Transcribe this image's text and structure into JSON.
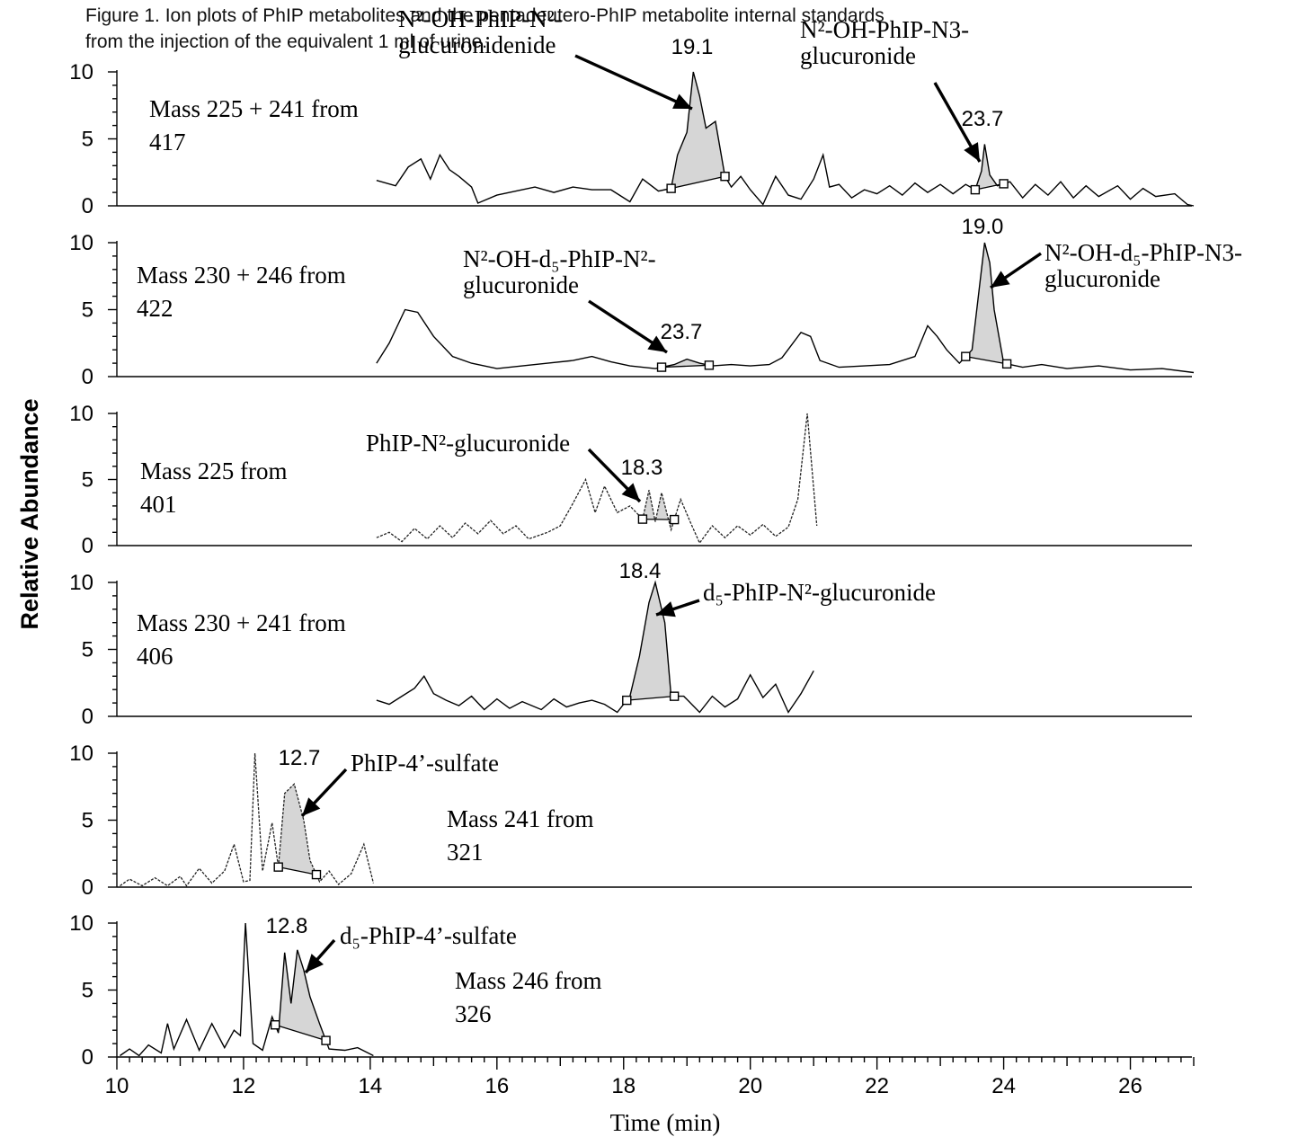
{
  "chart_data": {
    "type": "line",
    "title": "Figure 1.  Ion plots of PhIP metabolites and the pentadeutero-PhIP metabolite internal standards from the injection of the equivalent 1 ml of urine.",
    "title_lines": [
      "Figure 1.  Ion plots of PhIP metabolites and the pentadeutero-PhIP metabolite internal standards",
      "from the injection of the equivalent 1 ml of urine."
    ],
    "xlabel": "Time (min)",
    "ylabel": "Relative Abundance",
    "xlim": [
      10,
      27
    ],
    "x_ticks": [
      "10",
      "12",
      "14",
      "16",
      "18",
      "20",
      "22",
      "24",
      "26"
    ],
    "y_ticks": [
      "0",
      "5",
      "10"
    ],
    "panels": [
      {
        "mass_label": [
          "Mass 225 + 241 from",
          "417"
        ],
        "ylim": [
          0,
          10
        ],
        "style": "solid",
        "trace": [
          [
            14.1,
            1.9
          ],
          [
            14.4,
            1.5
          ],
          [
            14.6,
            2.9
          ],
          [
            14.8,
            3.5
          ],
          [
            14.95,
            2.0
          ],
          [
            15.1,
            3.8
          ],
          [
            15.25,
            2.7
          ],
          [
            15.4,
            2.2
          ],
          [
            15.6,
            1.4
          ],
          [
            15.7,
            0.2
          ],
          [
            16.0,
            0.8
          ],
          [
            16.3,
            1.1
          ],
          [
            16.6,
            1.4
          ],
          [
            16.9,
            1.0
          ],
          [
            17.2,
            1.4
          ],
          [
            17.5,
            1.2
          ],
          [
            17.8,
            1.2
          ],
          [
            18.1,
            0.3
          ],
          [
            18.3,
            2.0
          ],
          [
            18.55,
            1.1
          ],
          [
            18.75,
            1.3
          ],
          [
            18.85,
            3.8
          ],
          [
            19.0,
            5.5
          ],
          [
            19.1,
            10.0
          ],
          [
            19.2,
            8.2
          ],
          [
            19.3,
            5.8
          ],
          [
            19.45,
            6.3
          ],
          [
            19.6,
            2.2
          ],
          [
            19.7,
            1.4
          ],
          [
            19.85,
            2.2
          ],
          [
            20.0,
            1.2
          ],
          [
            20.2,
            0.1
          ],
          [
            20.4,
            2.2
          ],
          [
            20.6,
            0.8
          ],
          [
            20.8,
            0.5
          ],
          [
            21.0,
            2.0
          ],
          [
            21.15,
            3.8
          ],
          [
            21.25,
            1.4
          ],
          [
            21.4,
            1.6
          ],
          [
            21.6,
            0.6
          ],
          [
            21.8,
            1.2
          ],
          [
            22.0,
            0.9
          ],
          [
            22.2,
            1.5
          ],
          [
            22.4,
            0.8
          ],
          [
            22.6,
            1.7
          ],
          [
            22.8,
            1.0
          ],
          [
            23.0,
            1.6
          ],
          [
            23.2,
            0.9
          ],
          [
            23.4,
            1.6
          ],
          [
            23.55,
            1.2
          ],
          [
            23.65,
            2.6
          ],
          [
            23.7,
            4.6
          ],
          [
            23.78,
            2.3
          ],
          [
            23.9,
            1.5
          ],
          [
            24.1,
            1.8
          ],
          [
            24.3,
            0.6
          ],
          [
            24.5,
            1.6
          ],
          [
            24.7,
            0.8
          ],
          [
            24.9,
            1.8
          ],
          [
            25.1,
            0.6
          ],
          [
            25.3,
            1.5
          ],
          [
            25.5,
            0.7
          ],
          [
            25.8,
            1.5
          ],
          [
            26.0,
            0.5
          ],
          [
            26.2,
            1.3
          ],
          [
            26.4,
            0.7
          ],
          [
            26.7,
            0.9
          ],
          [
            26.9,
            0.1
          ],
          [
            27.0,
            0.0
          ]
        ],
        "peaks": [
          {
            "label": "19.1",
            "rt": 19.1,
            "height": 10.0,
            "start": 18.75,
            "end": 19.6
          },
          {
            "label": "23.7",
            "rt": 23.7,
            "height": 4.6,
            "start": 23.55,
            "end": 24.0
          }
        ],
        "annotations": [
          {
            "text": [
              "N²-OH-PhIP-N²-",
              "glucuronidenide"
            ],
            "points_to": 19.1
          },
          {
            "text": [
              "N²-OH-PhIP-N3-",
              "glucuronide"
            ],
            "points_to": 23.7
          }
        ]
      },
      {
        "mass_label": [
          "Mass 230 + 246 from",
          "422"
        ],
        "ylim": [
          0,
          10
        ],
        "style": "solid",
        "trace": [
          [
            14.1,
            1.0
          ],
          [
            14.3,
            2.5
          ],
          [
            14.55,
            5.0
          ],
          [
            14.75,
            4.8
          ],
          [
            15.0,
            3.0
          ],
          [
            15.3,
            1.5
          ],
          [
            15.6,
            1.0
          ],
          [
            16.0,
            0.6
          ],
          [
            16.4,
            0.8
          ],
          [
            16.8,
            1.0
          ],
          [
            17.2,
            1.2
          ],
          [
            17.5,
            1.5
          ],
          [
            17.8,
            1.1
          ],
          [
            18.1,
            0.8
          ],
          [
            18.5,
            0.6
          ],
          [
            18.8,
            0.9
          ],
          [
            19.0,
            1.3
          ],
          [
            19.2,
            1.0
          ],
          [
            19.4,
            0.8
          ],
          [
            19.7,
            0.9
          ],
          [
            20.0,
            0.8
          ],
          [
            20.3,
            0.9
          ],
          [
            20.5,
            1.4
          ],
          [
            20.8,
            3.3
          ],
          [
            20.95,
            3.0
          ],
          [
            21.1,
            1.2
          ],
          [
            21.4,
            0.7
          ],
          [
            21.8,
            0.8
          ],
          [
            22.2,
            0.9
          ],
          [
            22.6,
            1.5
          ],
          [
            22.8,
            3.8
          ],
          [
            22.95,
            3.0
          ],
          [
            23.1,
            2.0
          ],
          [
            23.3,
            1.0
          ],
          [
            23.5,
            2.0
          ],
          [
            23.6,
            6.0
          ],
          [
            23.7,
            10.0
          ],
          [
            23.78,
            8.5
          ],
          [
            23.85,
            5.0
          ],
          [
            24.0,
            1.0
          ],
          [
            24.3,
            0.7
          ],
          [
            24.6,
            0.9
          ],
          [
            25.0,
            0.6
          ],
          [
            25.5,
            0.8
          ],
          [
            26.0,
            0.5
          ],
          [
            26.5,
            0.6
          ],
          [
            27.0,
            0.3
          ]
        ],
        "peaks": [
          {
            "label": "19.0",
            "rt": 19.0,
            "height": 1.3,
            "start": 18.6,
            "end": 19.35
          },
          {
            "label": "23.7",
            "rt": 23.7,
            "height": 10.0,
            "start": 23.4,
            "end": 24.05
          }
        ],
        "annotations": [
          {
            "text": [
              "N²-OH-d₅-PhIP-N²-",
              "glucuronide"
            ],
            "points_to": 19.0
          },
          {
            "text": [
              "N²-OH-d₅-PhIP-N3-",
              "glucuronide"
            ],
            "points_to": 23.7
          }
        ]
      },
      {
        "mass_label": [
          "Mass 225 from",
          "401"
        ],
        "ylim": [
          0,
          10
        ],
        "style": "dotted",
        "trace": [
          [
            14.1,
            0.6
          ],
          [
            14.3,
            1.0
          ],
          [
            14.5,
            0.3
          ],
          [
            14.7,
            1.3
          ],
          [
            14.9,
            0.5
          ],
          [
            15.1,
            1.5
          ],
          [
            15.3,
            0.6
          ],
          [
            15.5,
            1.7
          ],
          [
            15.7,
            0.9
          ],
          [
            15.9,
            1.9
          ],
          [
            16.1,
            0.9
          ],
          [
            16.3,
            1.5
          ],
          [
            16.5,
            0.5
          ],
          [
            16.8,
            1.0
          ],
          [
            17.0,
            1.5
          ],
          [
            17.2,
            3.2
          ],
          [
            17.4,
            5.0
          ],
          [
            17.55,
            2.5
          ],
          [
            17.7,
            4.5
          ],
          [
            17.9,
            2.5
          ],
          [
            18.1,
            3.0
          ],
          [
            18.3,
            2.0
          ],
          [
            18.4,
            4.2
          ],
          [
            18.5,
            1.8
          ],
          [
            18.6,
            4.0
          ],
          [
            18.75,
            1.2
          ],
          [
            18.9,
            3.5
          ],
          [
            19.05,
            1.8
          ],
          [
            19.2,
            0.2
          ],
          [
            19.4,
            1.5
          ],
          [
            19.6,
            0.6
          ],
          [
            19.8,
            1.5
          ],
          [
            20.0,
            0.8
          ],
          [
            20.2,
            1.6
          ],
          [
            20.4,
            0.7
          ],
          [
            20.6,
            1.4
          ],
          [
            20.75,
            3.5
          ],
          [
            20.9,
            10.0
          ],
          [
            21.05,
            1.5
          ]
        ],
        "peaks": [
          {
            "label": "18.3",
            "rt": 18.3,
            "height": 4.2,
            "start": 18.3,
            "end": 18.8
          }
        ],
        "annotations": [
          {
            "text": [
              "PhIP-N²-glucuronide"
            ],
            "points_to": 18.3
          }
        ]
      },
      {
        "mass_label": [
          "Mass 230 + 241 from",
          "406"
        ],
        "ylim": [
          0,
          10
        ],
        "style": "solid",
        "trace": [
          [
            14.1,
            1.2
          ],
          [
            14.3,
            0.9
          ],
          [
            14.5,
            1.5
          ],
          [
            14.7,
            2.1
          ],
          [
            14.85,
            3.0
          ],
          [
            15.0,
            1.7
          ],
          [
            15.2,
            1.2
          ],
          [
            15.4,
            0.8
          ],
          [
            15.6,
            1.5
          ],
          [
            15.8,
            0.5
          ],
          [
            16.0,
            1.3
          ],
          [
            16.2,
            0.6
          ],
          [
            16.4,
            1.1
          ],
          [
            16.7,
            0.5
          ],
          [
            16.9,
            1.3
          ],
          [
            17.1,
            0.7
          ],
          [
            17.3,
            1.0
          ],
          [
            17.5,
            1.2
          ],
          [
            17.7,
            0.9
          ],
          [
            17.9,
            0.3
          ],
          [
            18.1,
            1.5
          ],
          [
            18.25,
            4.5
          ],
          [
            18.4,
            8.5
          ],
          [
            18.5,
            10.0
          ],
          [
            18.65,
            7.0
          ],
          [
            18.75,
            1.5
          ],
          [
            18.95,
            1.5
          ],
          [
            19.2,
            0.3
          ],
          [
            19.4,
            1.5
          ],
          [
            19.6,
            0.7
          ],
          [
            19.8,
            1.3
          ],
          [
            20.0,
            3.1
          ],
          [
            20.2,
            1.4
          ],
          [
            20.4,
            2.4
          ],
          [
            20.6,
            0.3
          ],
          [
            20.8,
            1.7
          ],
          [
            21.0,
            3.4
          ]
        ],
        "peaks": [
          {
            "label": "18.4",
            "rt": 18.4,
            "height": 10.0,
            "start": 18.05,
            "end": 18.8
          }
        ],
        "annotations": [
          {
            "text": [
              "d₅-PhIP-N²-glucuronide"
            ],
            "points_to": 18.4
          }
        ]
      },
      {
        "mass_label": [
          "Mass 241 from",
          "321"
        ],
        "ylim": [
          0,
          10
        ],
        "style": "dotted",
        "trace": [
          [
            10.05,
            0.1
          ],
          [
            10.2,
            0.6
          ],
          [
            10.4,
            0.1
          ],
          [
            10.6,
            0.7
          ],
          [
            10.8,
            0.1
          ],
          [
            11.0,
            0.8
          ],
          [
            11.1,
            0.1
          ],
          [
            11.3,
            1.4
          ],
          [
            11.5,
            0.3
          ],
          [
            11.7,
            1.2
          ],
          [
            11.85,
            3.2
          ],
          [
            12.0,
            0.4
          ],
          [
            12.1,
            0.5
          ],
          [
            12.18,
            10.0
          ],
          [
            12.3,
            1.2
          ],
          [
            12.45,
            4.8
          ],
          [
            12.55,
            1.5
          ],
          [
            12.65,
            7.0
          ],
          [
            12.8,
            7.7
          ],
          [
            12.95,
            5.0
          ],
          [
            13.05,
            2.0
          ],
          [
            13.2,
            0.4
          ],
          [
            13.35,
            1.2
          ],
          [
            13.5,
            0.2
          ],
          [
            13.7,
            1.0
          ],
          [
            13.9,
            3.2
          ],
          [
            14.05,
            0.3
          ]
        ],
        "peaks": [
          {
            "label": "12.7",
            "rt": 12.7,
            "height": 7.7,
            "start": 12.55,
            "end": 13.15
          }
        ],
        "annotations": [
          {
            "text": [
              "PhIP-4’-sulfate"
            ],
            "points_to": 12.8
          }
        ]
      },
      {
        "mass_label": [
          "Mass 246 from",
          "326"
        ],
        "ylim": [
          0,
          10
        ],
        "style": "solid",
        "trace": [
          [
            10.05,
            0.1
          ],
          [
            10.2,
            0.6
          ],
          [
            10.35,
            0.1
          ],
          [
            10.5,
            0.9
          ],
          [
            10.7,
            0.3
          ],
          [
            10.8,
            2.5
          ],
          [
            10.9,
            0.6
          ],
          [
            11.1,
            2.8
          ],
          [
            11.3,
            0.5
          ],
          [
            11.5,
            2.5
          ],
          [
            11.7,
            0.7
          ],
          [
            11.85,
            2.0
          ],
          [
            11.95,
            1.6
          ],
          [
            12.03,
            10.0
          ],
          [
            12.15,
            1.0
          ],
          [
            12.3,
            0.5
          ],
          [
            12.45,
            3.0
          ],
          [
            12.55,
            1.8
          ],
          [
            12.65,
            7.8
          ],
          [
            12.75,
            4.0
          ],
          [
            12.85,
            8.0
          ],
          [
            12.95,
            6.5
          ],
          [
            13.05,
            4.5
          ],
          [
            13.2,
            2.5
          ],
          [
            13.35,
            0.6
          ],
          [
            13.6,
            0.5
          ],
          [
            13.8,
            0.7
          ],
          [
            14.05,
            0.1
          ]
        ],
        "peaks": [
          {
            "label": "12.8",
            "rt": 12.8,
            "height": 8.0,
            "start": 12.5,
            "end": 13.3
          }
        ],
        "annotations": [
          {
            "text": [
              "d₅-PhIP-4’-sulfate"
            ],
            "points_to": 12.9
          }
        ]
      }
    ]
  }
}
